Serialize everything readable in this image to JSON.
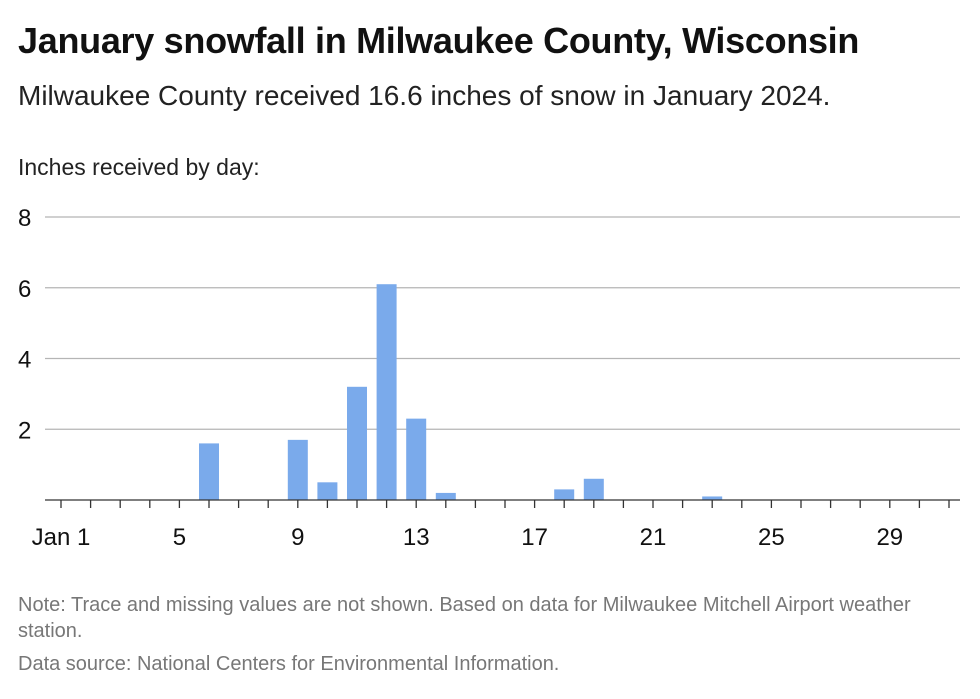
{
  "header": {
    "title": "January snowfall in Milwaukee County, Wisconsin",
    "subtitle": "Milwaukee County received 16.6 inches of snow in January 2024.",
    "ylabel": "Inches received by day:"
  },
  "footer": {
    "note": "Note: Trace and missing values are not shown. Based on data for Milwaukee Mitchell Airport weather station.",
    "source": "Data source: National Centers for Environmental Information."
  },
  "colors": {
    "bar": "#7aaaeb",
    "grid": "#b5b5b5",
    "axis": "#333333",
    "text": "#111111"
  },
  "chart_data": {
    "type": "bar",
    "title": "January snowfall in Milwaukee County, Wisconsin",
    "subtitle": "Milwaukee County received 16.6 inches of snow in January 2024.",
    "ylabel": "Inches received by day:",
    "xlabel": "",
    "x_tick_labels": [
      {
        "day": 1,
        "label": "Jan 1"
      },
      {
        "day": 5,
        "label": "5"
      },
      {
        "day": 9,
        "label": "9"
      },
      {
        "day": 13,
        "label": "13"
      },
      {
        "day": 17,
        "label": "17"
      },
      {
        "day": 21,
        "label": "21"
      },
      {
        "day": 25,
        "label": "25"
      },
      {
        "day": 29,
        "label": "29"
      }
    ],
    "yticks": [
      2,
      4,
      6,
      8
    ],
    "ylim": [
      0,
      8
    ],
    "xlim": [
      1,
      31
    ],
    "grid": true,
    "legend": "none",
    "data": [
      {
        "day": 6,
        "value": 1.6
      },
      {
        "day": 9,
        "value": 1.7
      },
      {
        "day": 10,
        "value": 0.5
      },
      {
        "day": 11,
        "value": 3.2
      },
      {
        "day": 12,
        "value": 6.1
      },
      {
        "day": 13,
        "value": 2.3
      },
      {
        "day": 14,
        "value": 0.2
      },
      {
        "day": 18,
        "value": 0.3
      },
      {
        "day": 19,
        "value": 0.6
      },
      {
        "day": 23,
        "value": 0.1
      }
    ]
  }
}
